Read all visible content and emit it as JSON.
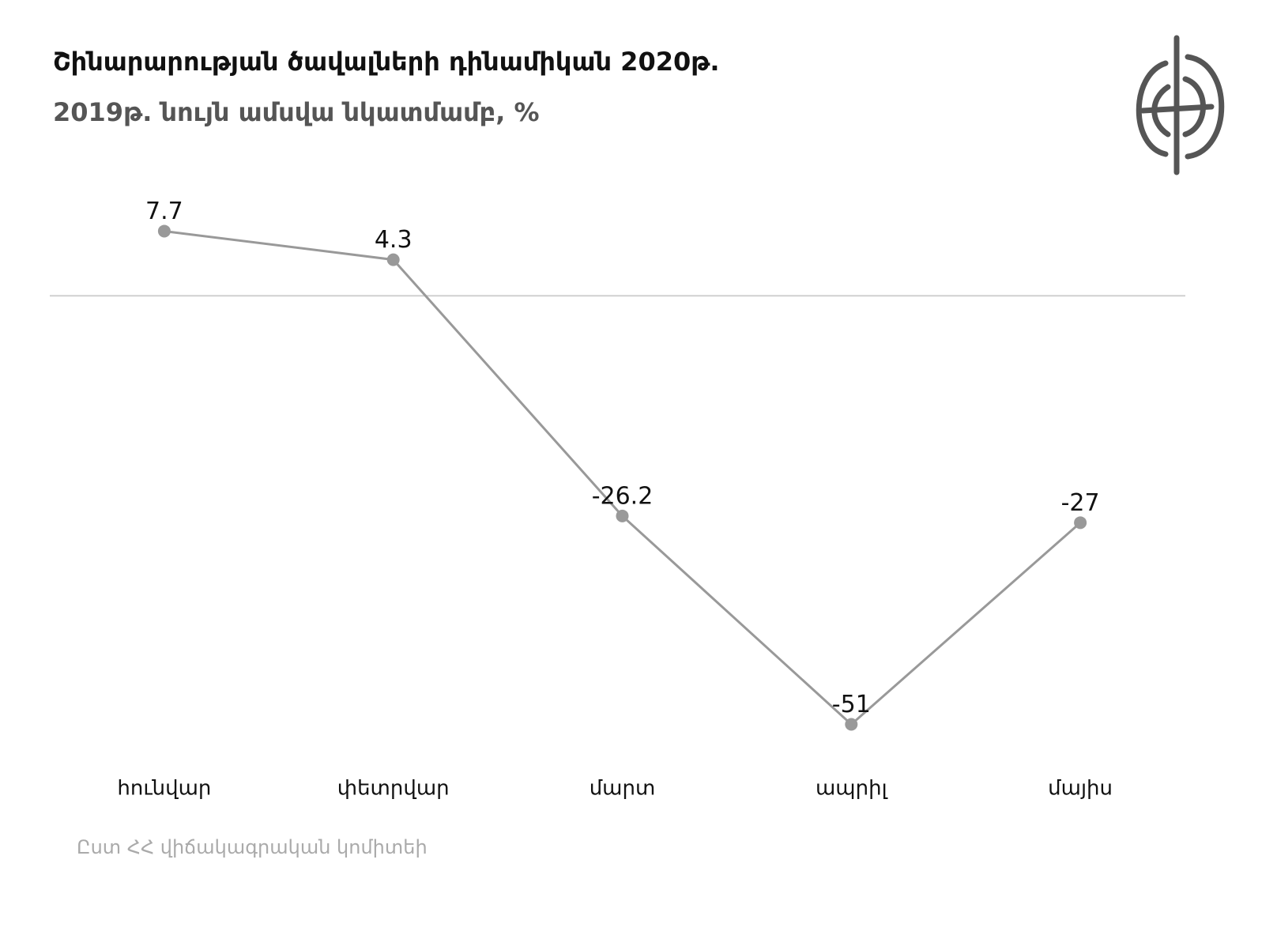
{
  "chart_data": {
    "type": "line",
    "title": "Շինարարության ծավալների դինամիկան 2020թ.",
    "subtitle": "2019թ. նույն ամսվա նկատմամբ, %",
    "source": "Ըստ ՀՀ վիճակագրական կոմիտեի",
    "categories": [
      "հունվար",
      "փետրվար",
      "մարտ",
      "ապրիլ",
      "մայիս"
    ],
    "values": [
      7.7,
      4.3,
      -26.2,
      -51,
      -27
    ],
    "color": "#999999",
    "ylim": [
      -55,
      10
    ],
    "baseline": true
  }
}
